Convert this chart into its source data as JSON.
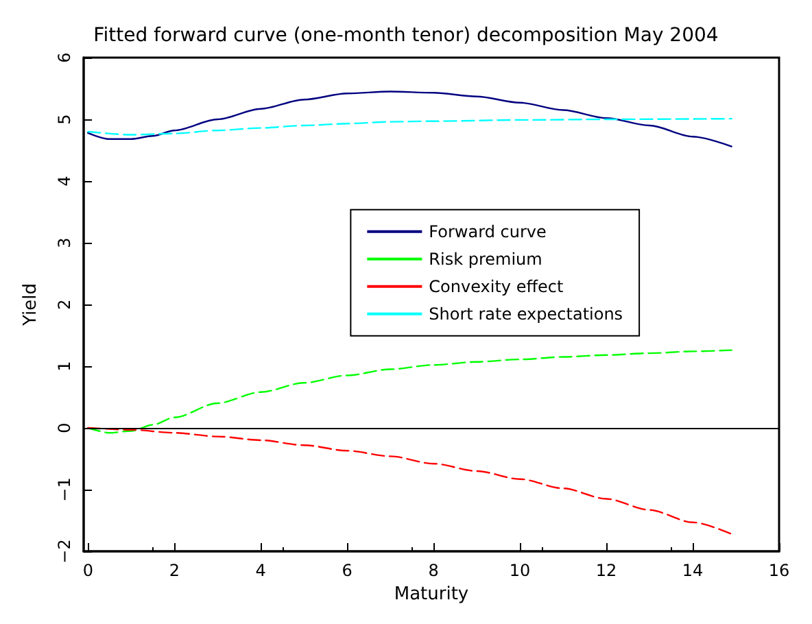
{
  "chart_data": {
    "type": "line",
    "title": "Fitted forward curve (one-month tenor) decomposition May 2004",
    "xlabel": "Maturity",
    "ylabel": "Yield",
    "xlim": [
      -0.1,
      16
    ],
    "xticks": [
      0,
      2,
      4,
      6,
      8,
      10,
      12,
      14,
      16
    ],
    "ylim": [
      -2,
      6
    ],
    "yticks": [
      -2,
      -1,
      0,
      1,
      2,
      3,
      4,
      5,
      6
    ],
    "grid": false,
    "legend": "center",
    "marker": "none",
    "ref_lines": [
      {
        "axis": "y",
        "value": 0,
        "color": "#000000",
        "line_style": "solid"
      }
    ],
    "series": [
      {
        "name": "Forward curve",
        "color": "#000080",
        "line_style": "solid",
        "x": [
          0,
          0.5,
          1,
          1.5,
          2,
          3,
          4,
          5,
          6,
          7,
          8,
          9,
          10,
          11,
          12,
          13,
          14,
          14.9
        ],
        "values": [
          4.78,
          4.68,
          4.68,
          4.73,
          4.82,
          5.0,
          5.17,
          5.32,
          5.42,
          5.45,
          5.43,
          5.37,
          5.27,
          5.15,
          5.02,
          4.9,
          4.72,
          4.56
        ]
      },
      {
        "name": "Risk premium",
        "color": "#00ff00",
        "line_style": "dashed",
        "x": [
          0,
          0.5,
          1,
          1.5,
          2,
          3,
          4,
          5,
          6,
          7,
          8,
          9,
          10,
          11,
          12,
          13,
          14,
          14.9
        ],
        "values": [
          0,
          -0.08,
          -0.05,
          0.05,
          0.17,
          0.4,
          0.58,
          0.73,
          0.85,
          0.95,
          1.02,
          1.07,
          1.11,
          1.15,
          1.18,
          1.21,
          1.24,
          1.26
        ]
      },
      {
        "name": "Convexity effect",
        "color": "#ff0000",
        "line_style": "dashed",
        "x": [
          0,
          1,
          2,
          3,
          4,
          5,
          6,
          7,
          8,
          9,
          10,
          11,
          12,
          13,
          14,
          14.9
        ],
        "values": [
          0,
          -0.03,
          -0.08,
          -0.14,
          -0.2,
          -0.28,
          -0.37,
          -0.46,
          -0.58,
          -0.7,
          -0.83,
          -0.98,
          -1.15,
          -1.33,
          -1.53,
          -1.72
        ]
      },
      {
        "name": "Short rate expectations",
        "color": "#00ffff",
        "line_style": "dashed",
        "x": [
          0,
          1,
          2,
          3,
          4,
          5,
          6,
          7,
          8,
          10,
          12,
          14.9
        ],
        "values": [
          4.8,
          4.75,
          4.77,
          4.82,
          4.86,
          4.9,
          4.93,
          4.96,
          4.97,
          4.99,
          5.0,
          5.01
        ]
      }
    ]
  }
}
